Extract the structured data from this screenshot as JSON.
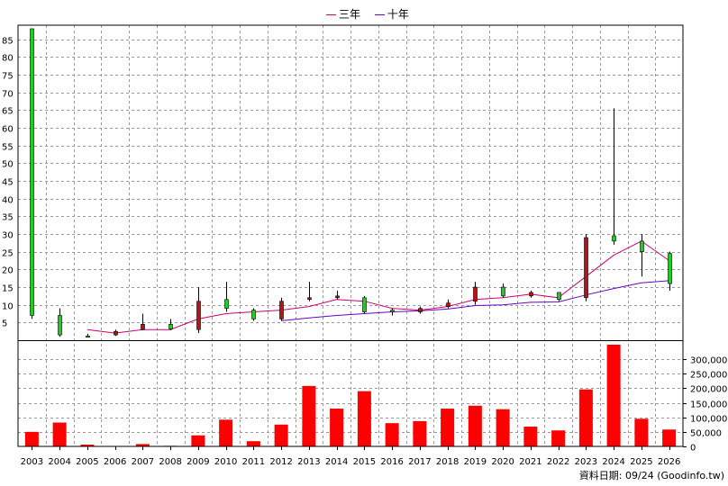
{
  "legend": {
    "ma3_label": "三年",
    "ma10_label": "十年",
    "ma3_color": "#d0006f",
    "ma10_color": "#6a00c8"
  },
  "source_text": "資料日期: 09/24  (Goodinfo.tw)",
  "colors": {
    "up": "#22cc22",
    "down": "#bb1111",
    "volume": "#ff0000",
    "grid": "#999999",
    "wick": "#000000"
  },
  "chart_data": {
    "type": "candlestick_with_volume",
    "categories": [
      "2003",
      "2004",
      "2005",
      "2006",
      "2007",
      "2008",
      "2009",
      "2010",
      "2011",
      "2012",
      "2013",
      "2014",
      "2015",
      "2016",
      "2017",
      "2018",
      "2019",
      "2020",
      "2021",
      "2022",
      "2023",
      "2024",
      "2025",
      "2026"
    ],
    "candles": [
      {
        "open": 7,
        "high": 88,
        "low": 6,
        "close": 88
      },
      {
        "open": 1.5,
        "high": 9,
        "low": 1,
        "close": 7
      },
      {
        "open": 1.2,
        "high": 1.8,
        "low": 0.8,
        "close": 1.2
      },
      {
        "open": 2.5,
        "high": 3,
        "low": 1.2,
        "close": 1.5
      },
      {
        "open": 4.5,
        "high": 7.5,
        "low": 2.8,
        "close": 3
      },
      {
        "open": 3.2,
        "high": 6,
        "low": 2.8,
        "close": 4.5
      },
      {
        "open": 11,
        "high": 15,
        "low": 2,
        "close": 3
      },
      {
        "open": 9,
        "high": 16.5,
        "low": 8,
        "close": 11.5
      },
      {
        "open": 6,
        "high": 9,
        "low": 5.5,
        "close": 8.5
      },
      {
        "open": 11,
        "high": 12,
        "low": 5.5,
        "close": 6
      },
      {
        "open": 12,
        "high": 16.5,
        "low": 11,
        "close": 11.5
      },
      {
        "open": 12.5,
        "high": 14,
        "low": 11.5,
        "close": 12
      },
      {
        "open": 8,
        "high": 12.5,
        "low": 7.5,
        "close": 12
      },
      {
        "open": 8,
        "high": 9,
        "low": 7,
        "close": 8.5
      },
      {
        "open": 9,
        "high": 9.5,
        "low": 7.5,
        "close": 8
      },
      {
        "open": 10.5,
        "high": 11.5,
        "low": 9,
        "close": 9.5
      },
      {
        "open": 15,
        "high": 16.5,
        "low": 10,
        "close": 11
      },
      {
        "open": 12.5,
        "high": 16,
        "low": 12,
        "close": 15
      },
      {
        "open": 13.5,
        "high": 14,
        "low": 12,
        "close": 12.5
      },
      {
        "open": 11.5,
        "high": 13.5,
        "low": 11,
        "close": 13.5
      },
      {
        "open": 29,
        "high": 30,
        "low": 11,
        "close": 12
      },
      {
        "open": 28,
        "high": 65.5,
        "low": 27,
        "close": 29.5
      },
      {
        "open": 25,
        "high": 30,
        "low": 18,
        "close": 28
      },
      {
        "open": 16,
        "high": 25,
        "low": 14,
        "close": 24.5
      }
    ],
    "ma3": [
      null,
      null,
      3,
      2,
      3,
      3,
      6,
      7.5,
      8,
      8.5,
      9.5,
      11.5,
      11,
      9,
      8.5,
      9.5,
      11.5,
      12,
      13,
      12,
      18,
      24,
      28,
      22.5
    ],
    "ma10": [
      null,
      null,
      null,
      null,
      null,
      null,
      null,
      null,
      null,
      5.5,
      6.3,
      7,
      7.5,
      8,
      8.3,
      8.8,
      9.8,
      10,
      10.7,
      10.8,
      12.8,
      14.6,
      16.2,
      16.8
    ],
    "volume": [
      50000,
      82000,
      6000,
      1500,
      8000,
      2000,
      38000,
      92000,
      18000,
      75000,
      208000,
      130000,
      190000,
      80000,
      87000,
      130000,
      140000,
      128000,
      68000,
      55000,
      196000,
      350000,
      95000,
      58000
    ],
    "price_yticks": [
      5,
      10,
      15,
      20,
      25,
      30,
      35,
      40,
      45,
      50,
      55,
      60,
      65,
      70,
      75,
      80,
      85
    ],
    "price_ylim": [
      0,
      89
    ],
    "volume_yticks": [
      "0",
      "50,000",
      "100,000",
      "150,000",
      "200,000",
      "250,000",
      "300,000"
    ],
    "volume_ylim": [
      0,
      350000
    ],
    "grid": true
  }
}
